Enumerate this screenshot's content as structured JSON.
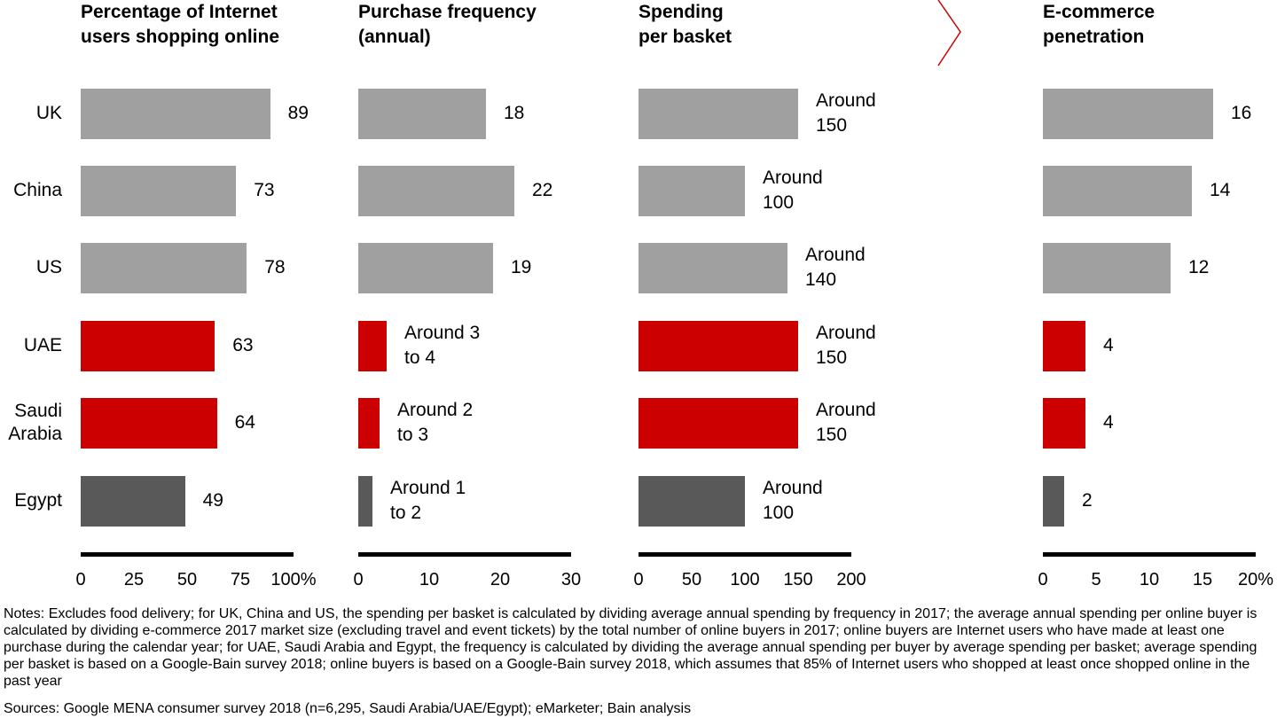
{
  "chart_data": [
    {
      "type": "bar",
      "orientation": "horizontal",
      "title": "Percentage of Internet users shopping online",
      "categories": [
        "UK",
        "China",
        "US",
        "UAE",
        "Saudi Arabia",
        "Egypt"
      ],
      "values": [
        89,
        73,
        78,
        63,
        64,
        49
      ],
      "colors": [
        "#a0a0a0",
        "#a0a0a0",
        "#a0a0a0",
        "#cc0000",
        "#cc0000",
        "#595959"
      ],
      "xlim": [
        0,
        100
      ],
      "xticks": [
        0,
        25,
        50,
        75,
        {
          "value": 100,
          "label": "100%"
        }
      ]
    },
    {
      "type": "bar",
      "orientation": "horizontal",
      "title": "Purchase frequency (annual)",
      "values": [
        18,
        22,
        19,
        4,
        3,
        2
      ],
      "value_labels": [
        "18",
        "22",
        "19",
        "Around 3 to 4",
        "Around 2 to 3",
        "Around 1 to 2"
      ],
      "colors": [
        "#a0a0a0",
        "#a0a0a0",
        "#a0a0a0",
        "#cc0000",
        "#cc0000",
        "#595959"
      ],
      "xlim": [
        0,
        30
      ],
      "xticks": [
        0,
        10,
        20,
        30
      ]
    },
    {
      "type": "bar",
      "orientation": "horizontal",
      "title": "Spending per basket",
      "values": [
        150,
        100,
        140,
        150,
        150,
        100
      ],
      "value_labels": [
        "Around 150",
        "Around 100",
        "Around 140",
        "Around 150",
        "Around 150",
        "Around 100"
      ],
      "colors": [
        "#a0a0a0",
        "#a0a0a0",
        "#a0a0a0",
        "#cc0000",
        "#cc0000",
        "#595959"
      ],
      "xlim": [
        0,
        200
      ],
      "xticks": [
        0,
        50,
        100,
        150,
        200
      ]
    },
    {
      "type": "bar",
      "orientation": "horizontal",
      "title": "E-commerce penetration",
      "values": [
        16,
        14,
        12,
        4,
        4,
        2
      ],
      "colors": [
        "#a0a0a0",
        "#a0a0a0",
        "#a0a0a0",
        "#cc0000",
        "#cc0000",
        "#595959"
      ],
      "xlim": [
        0,
        20
      ],
      "xticks": [
        0,
        5,
        10,
        15,
        {
          "value": 20,
          "label": "20%"
        }
      ]
    }
  ],
  "notes": "Notes: Excludes food delivery; for UK, China and US, the spending per basket is calculated by dividing average annual spending by frequency in 2017; the average annual spending per online buyer is calculated by dividing e-commerce 2017 market size (excluding travel and event tickets) by the total number of online buyers in 2017; online buyers are Internet users who have made at least one purchase during the calendar year; for UAE, Saudi Arabia and Egypt, the frequency is calculated by dividing the average annual spending per buyer by average spending per basket; average spending per basket is based on a Google-Bain survey 2018; online buyers is based on a Google-Bain survey 2018, which assumes that 85% of Internet users who shopped at least once shopped online in the past year",
  "sources": "Sources: Google MENA consumer survey 2018 (n=6,295, Saudi Arabia/UAE/Egypt); eMarketer; Bain analysis"
}
